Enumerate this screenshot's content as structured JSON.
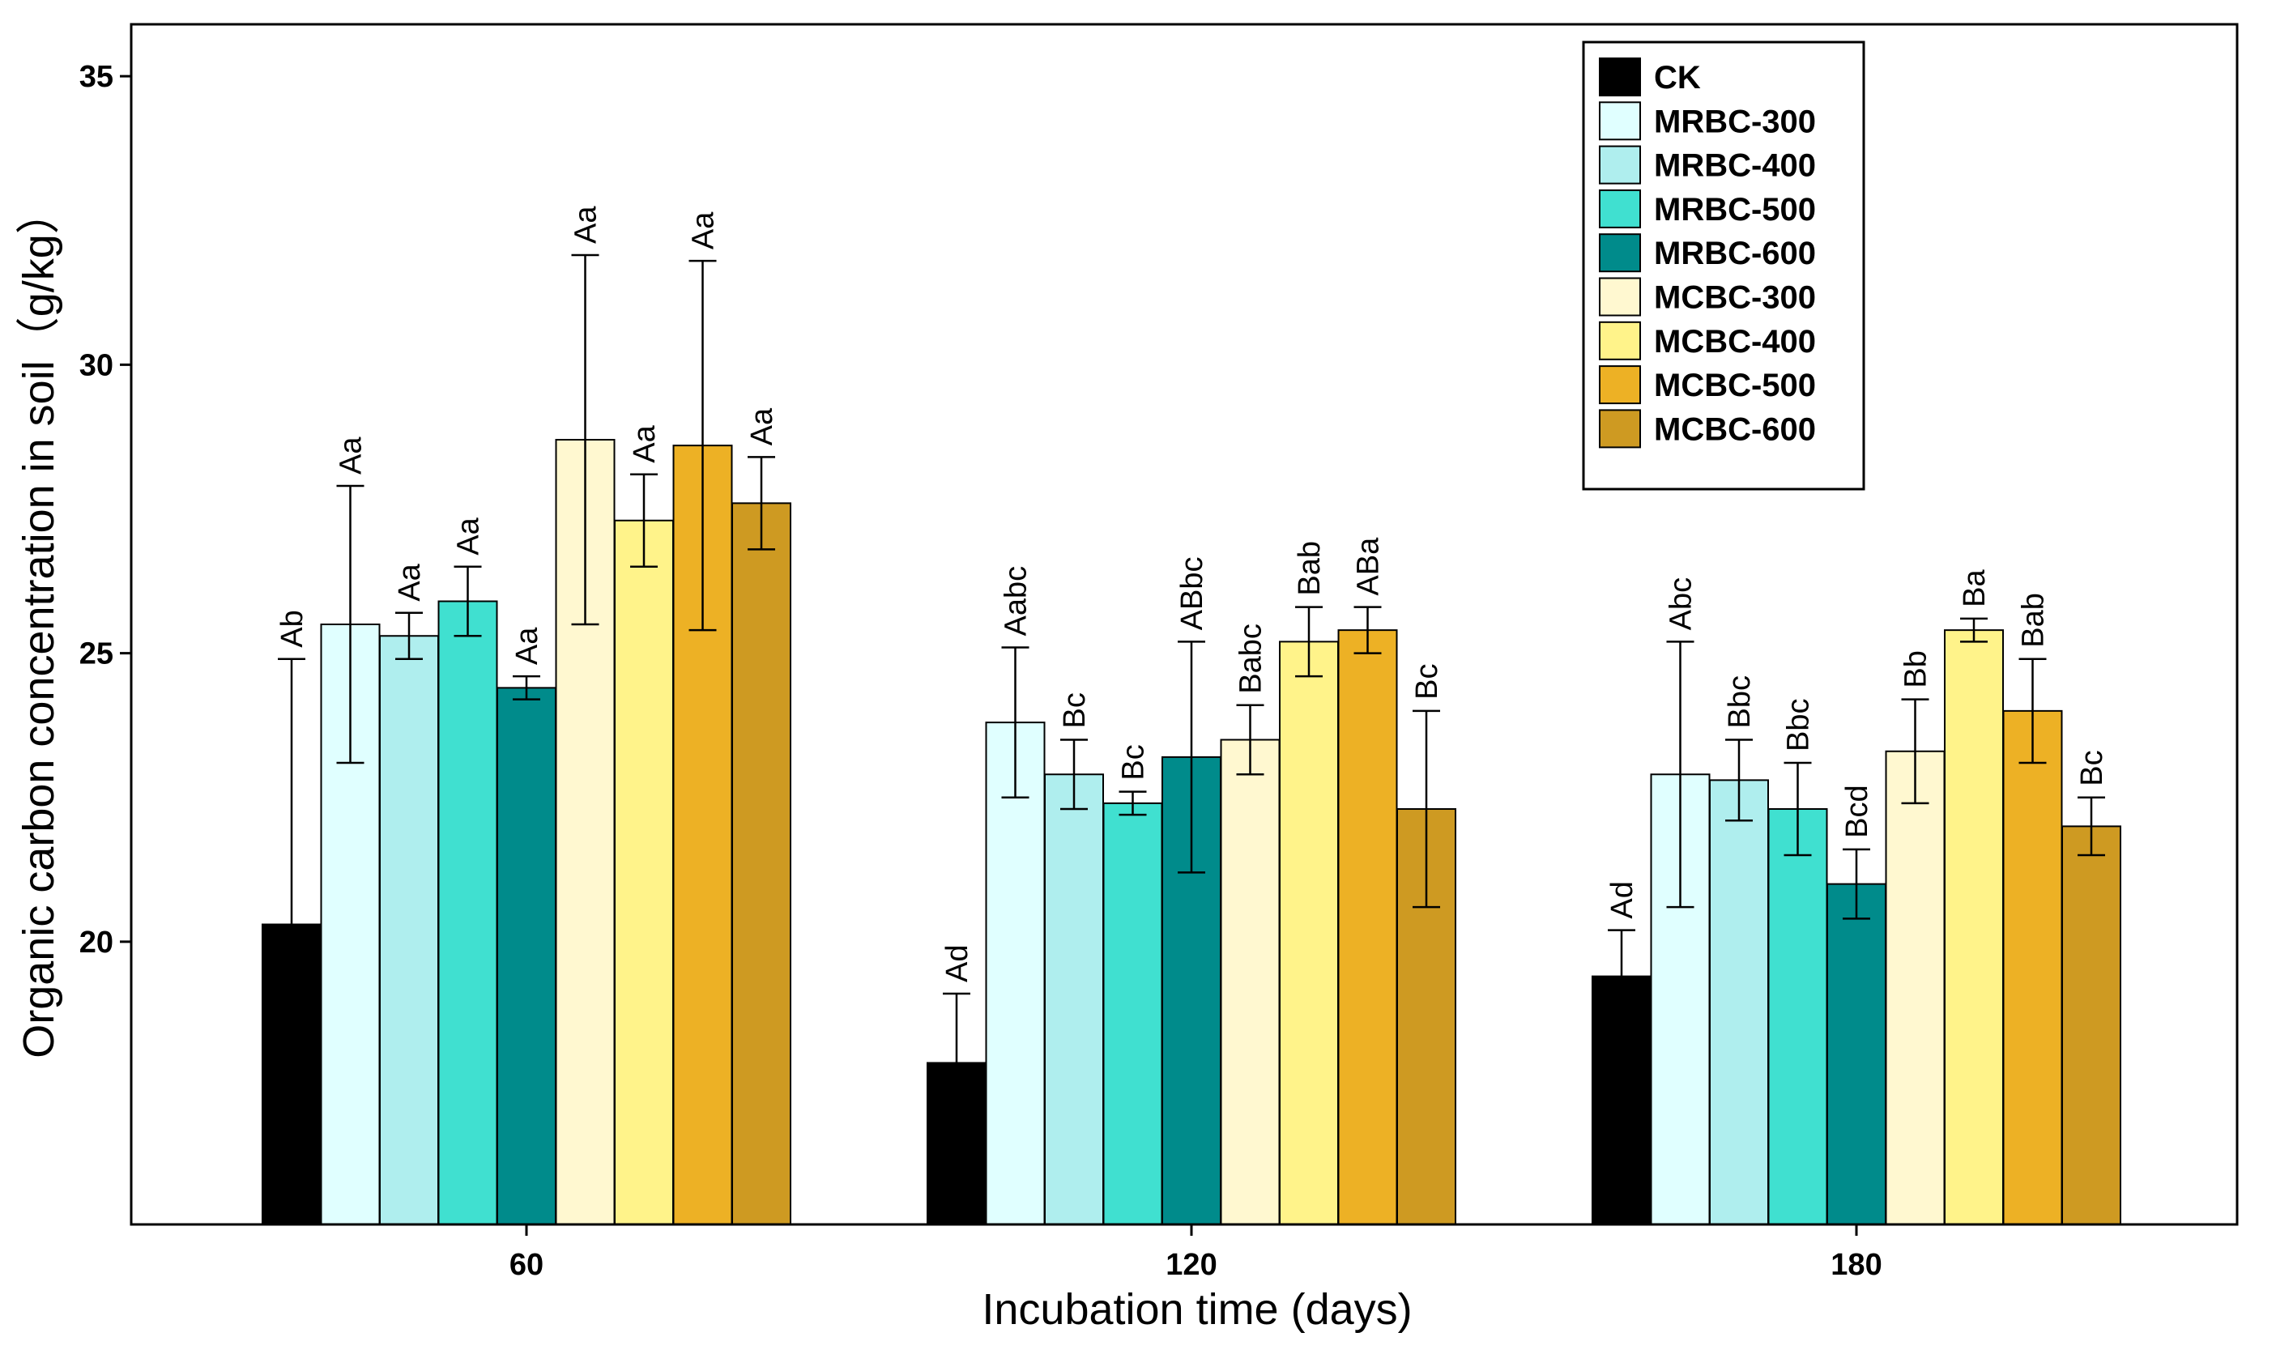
{
  "chart_data": {
    "type": "bar",
    "title": "",
    "xlabel": "Incubation time (days)",
    "ylabel": "Organic carbon concentration in soil（g/kg）",
    "ylim": [
      15.1,
      35.9
    ],
    "yticks": [
      20,
      25,
      30,
      35
    ],
    "grid": false,
    "legend_position": "top-right",
    "categories": [
      "60",
      "120",
      "180"
    ],
    "series": [
      {
        "name": "CK",
        "color": "#000000",
        "values": [
          20.3,
          17.9,
          19.4
        ],
        "errors": [
          4.6,
          1.2,
          0.8
        ],
        "labels": [
          "Ab",
          "Ad",
          "Ad"
        ]
      },
      {
        "name": "MRBC-300",
        "color": "#E0FFFF",
        "values": [
          25.5,
          23.8,
          22.9
        ],
        "errors": [
          2.4,
          1.3,
          2.3
        ],
        "labels": [
          "Aa",
          "Aabc",
          "Abc"
        ]
      },
      {
        "name": "MRBC-400",
        "color": "#AFEEEE",
        "values": [
          25.3,
          22.9,
          22.8
        ],
        "errors": [
          0.4,
          0.6,
          0.7
        ],
        "labels": [
          "Aa",
          "Bc",
          "Bbc"
        ]
      },
      {
        "name": "MRBC-500",
        "color": "#40E0D0",
        "values": [
          25.9,
          22.4,
          22.3
        ],
        "errors": [
          0.6,
          0.2,
          0.8
        ],
        "labels": [
          "Aa",
          "Bc",
          "Bbc"
        ]
      },
      {
        "name": "MRBC-600",
        "color": "#008B8B",
        "values": [
          24.4,
          23.2,
          21.0
        ],
        "errors": [
          0.2,
          2.0,
          0.6
        ],
        "labels": [
          "Aa",
          "ABbc",
          "Bcd"
        ]
      },
      {
        "name": "MCBC-300",
        "color": "#FFF8D0",
        "values": [
          28.7,
          23.5,
          23.3
        ],
        "errors": [
          3.2,
          0.6,
          0.9
        ],
        "labels": [
          "Aa",
          "Babc",
          "Bb"
        ]
      },
      {
        "name": "MCBC-400",
        "color": "#FFF38A",
        "values": [
          27.3,
          25.2,
          25.4
        ],
        "errors": [
          0.8,
          0.6,
          0.2
        ],
        "labels": [
          "Aa",
          "Bab",
          "Ba"
        ]
      },
      {
        "name": "MCBC-500",
        "color": "#EDB125",
        "values": [
          28.6,
          25.4,
          24.0
        ],
        "errors": [
          3.2,
          0.4,
          0.9
        ],
        "labels": [
          "Aa",
          "ABa",
          "Bab"
        ]
      },
      {
        "name": "MCBC-600",
        "color": "#CE9A22",
        "values": [
          27.6,
          22.3,
          22.0
        ],
        "errors": [
          0.8,
          1.7,
          0.5
        ],
        "labels": [
          "Aa",
          "Bc",
          "Bc"
        ]
      }
    ]
  }
}
